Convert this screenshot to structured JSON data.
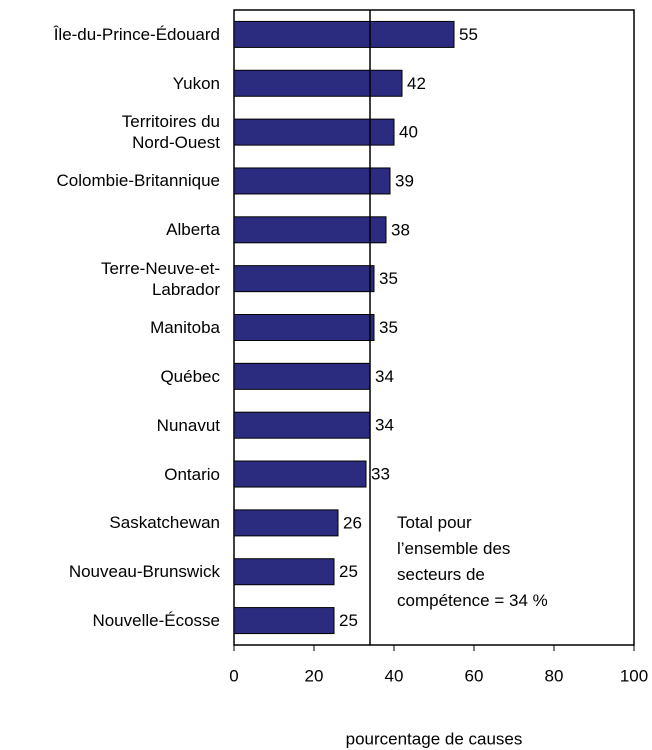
{
  "chart_data": {
    "type": "bar",
    "orientation": "horizontal",
    "categories": [
      "Île-du-Prince-Édouard",
      "Yukon",
      "Territoires du\nNord-Ouest",
      "Colombie-Britannique",
      "Alberta",
      "Terre-Neuve-et-\nLabrador",
      "Manitoba",
      "Québec",
      "Nunavut",
      "Ontario",
      "Saskatchewan",
      "Nouveau-Brunswick",
      "Nouvelle-Écosse"
    ],
    "values": [
      55,
      42,
      40,
      39,
      38,
      35,
      35,
      34,
      34,
      33,
      26,
      25,
      25
    ],
    "color": "#2b2b7f",
    "xlim": [
      0,
      100
    ],
    "xticks": [
      0,
      20,
      40,
      60,
      80,
      100
    ],
    "xlabel": "pourcentage de causes",
    "reference_value": 34,
    "annotation": "Total pour\nl’ensemble des\nsecteurs de\ncompétence = 34 %"
  }
}
